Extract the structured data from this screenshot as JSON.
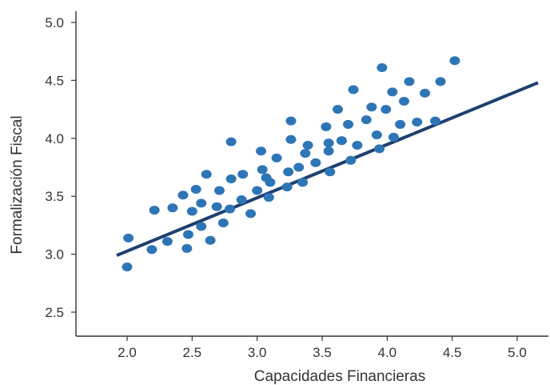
{
  "chart_data": {
    "type": "scatter",
    "xlabel": "Capacidades Financieras",
    "ylabel": "Formalización Fiscal",
    "xlim": [
      1.7,
      5.2
    ],
    "ylim": [
      2.3,
      5.1
    ],
    "x_ticks": [
      {
        "value": 2.0,
        "label": "2.0"
      },
      {
        "value": 2.5,
        "label": "2.5"
      },
      {
        "value": 3.0,
        "label": "3.0"
      },
      {
        "value": 3.5,
        "label": "3.5"
      },
      {
        "value": 4.0,
        "label": "4.0"
      },
      {
        "value": 4.5,
        "label": "4.5"
      },
      {
        "value": 5.0,
        "label": "5.0"
      }
    ],
    "y_ticks": [
      {
        "value": 2.5,
        "label": "2.5"
      },
      {
        "value": 3.0,
        "label": "3.0"
      },
      {
        "value": 3.5,
        "label": "3.5"
      },
      {
        "value": 4.0,
        "label": "4.0"
      },
      {
        "value": 4.5,
        "label": "4.5"
      },
      {
        "value": 5.0,
        "label": "5.0"
      }
    ],
    "grid": false,
    "colors": {
      "points": "#2e75b6",
      "trend": "#1f3f6e",
      "axis": "#333333"
    },
    "trend_line": {
      "x": [
        1.92,
        5.16
      ],
      "y": [
        2.99,
        4.48
      ]
    },
    "points": [
      {
        "x": 2.01,
        "y": 3.14
      },
      {
        "x": 2.0,
        "y": 2.89
      },
      {
        "x": 2.19,
        "y": 3.04
      },
      {
        "x": 2.21,
        "y": 3.38
      },
      {
        "x": 2.31,
        "y": 3.11
      },
      {
        "x": 2.35,
        "y": 3.4
      },
      {
        "x": 2.43,
        "y": 3.51
      },
      {
        "x": 2.46,
        "y": 3.05
      },
      {
        "x": 2.47,
        "y": 3.17
      },
      {
        "x": 2.5,
        "y": 3.37
      },
      {
        "x": 2.53,
        "y": 3.56
      },
      {
        "x": 2.57,
        "y": 3.24
      },
      {
        "x": 2.57,
        "y": 3.44
      },
      {
        "x": 2.61,
        "y": 3.69
      },
      {
        "x": 2.64,
        "y": 3.12
      },
      {
        "x": 2.69,
        "y": 3.41
      },
      {
        "x": 2.71,
        "y": 3.55
      },
      {
        "x": 2.74,
        "y": 3.27
      },
      {
        "x": 2.79,
        "y": 3.39
      },
      {
        "x": 2.8,
        "y": 3.97
      },
      {
        "x": 2.8,
        "y": 3.65
      },
      {
        "x": 2.88,
        "y": 3.47
      },
      {
        "x": 2.89,
        "y": 3.69
      },
      {
        "x": 2.95,
        "y": 3.35
      },
      {
        "x": 3.0,
        "y": 3.55
      },
      {
        "x": 3.03,
        "y": 3.89
      },
      {
        "x": 3.04,
        "y": 3.73
      },
      {
        "x": 3.07,
        "y": 3.66
      },
      {
        "x": 3.09,
        "y": 3.49
      },
      {
        "x": 3.1,
        "y": 3.62
      },
      {
        "x": 3.15,
        "y": 3.83
      },
      {
        "x": 3.23,
        "y": 3.58
      },
      {
        "x": 3.24,
        "y": 3.71
      },
      {
        "x": 3.26,
        "y": 3.99
      },
      {
        "x": 3.26,
        "y": 4.15
      },
      {
        "x": 3.32,
        "y": 3.75
      },
      {
        "x": 3.35,
        "y": 3.62
      },
      {
        "x": 3.37,
        "y": 3.87
      },
      {
        "x": 3.39,
        "y": 3.94
      },
      {
        "x": 3.45,
        "y": 3.79
      },
      {
        "x": 3.53,
        "y": 4.1
      },
      {
        "x": 3.55,
        "y": 3.96
      },
      {
        "x": 3.55,
        "y": 3.89
      },
      {
        "x": 3.56,
        "y": 3.71
      },
      {
        "x": 3.62,
        "y": 4.25
      },
      {
        "x": 3.65,
        "y": 3.98
      },
      {
        "x": 3.7,
        "y": 4.12
      },
      {
        "x": 3.72,
        "y": 3.81
      },
      {
        "x": 3.74,
        "y": 4.42
      },
      {
        "x": 3.77,
        "y": 3.94
      },
      {
        "x": 3.84,
        "y": 4.16
      },
      {
        "x": 3.88,
        "y": 4.27
      },
      {
        "x": 3.92,
        "y": 4.03
      },
      {
        "x": 3.94,
        "y": 3.91
      },
      {
        "x": 3.96,
        "y": 4.61
      },
      {
        "x": 3.99,
        "y": 4.25
      },
      {
        "x": 4.04,
        "y": 4.4
      },
      {
        "x": 4.05,
        "y": 4.01
      },
      {
        "x": 4.1,
        "y": 4.12
      },
      {
        "x": 4.13,
        "y": 4.32
      },
      {
        "x": 4.17,
        "y": 4.49
      },
      {
        "x": 4.23,
        "y": 4.14
      },
      {
        "x": 4.29,
        "y": 4.39
      },
      {
        "x": 4.37,
        "y": 4.15
      },
      {
        "x": 4.41,
        "y": 4.49
      },
      {
        "x": 4.52,
        "y": 4.67
      }
    ]
  }
}
